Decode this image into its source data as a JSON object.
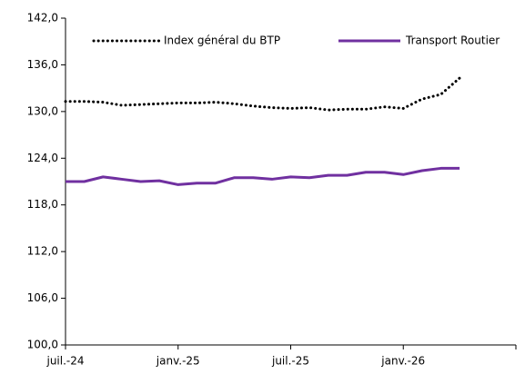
{
  "chart_data": {
    "type": "line",
    "categories": [
      "juil.-24",
      null,
      null,
      null,
      null,
      null,
      "janv.-25",
      null,
      null,
      null,
      null,
      null,
      "juil.-25",
      null,
      null,
      null,
      null,
      null,
      "janv.-26",
      null,
      null,
      null,
      null,
      null,
      null
    ],
    "series": [
      {
        "name": "Index général du BTP",
        "color": "#000000",
        "style": "dotted",
        "values": [
          131.3,
          131.3,
          131.2,
          130.8,
          130.9,
          131.0,
          131.1,
          131.1,
          131.2,
          131.0,
          130.7,
          130.5,
          130.4,
          130.5,
          130.2,
          130.3,
          130.3,
          130.6,
          130.4,
          131.6,
          132.2,
          134.3,
          null,
          null,
          null
        ]
      },
      {
        "name": "Transport Routier",
        "color": "#7030a0",
        "style": "solid",
        "values": [
          121.0,
          121.0,
          121.6,
          121.3,
          121.0,
          121.1,
          120.6,
          120.8,
          120.8,
          121.5,
          121.5,
          121.3,
          121.6,
          121.5,
          121.8,
          121.8,
          122.2,
          122.2,
          121.9,
          122.4,
          122.7,
          122.7,
          null,
          null,
          null
        ]
      }
    ],
    "ylim": [
      100,
      142
    ],
    "yticks": [
      {
        "value": 100,
        "label": "100,0"
      },
      {
        "value": 106,
        "label": "106,0"
      },
      {
        "value": 112,
        "label": "112,0"
      },
      {
        "value": 118,
        "label": "118,0"
      },
      {
        "value": 124,
        "label": "124,0"
      },
      {
        "value": 130,
        "label": "130,0"
      },
      {
        "value": 136,
        "label": "136,0"
      },
      {
        "value": 142,
        "label": "142,0"
      }
    ],
    "legend": "top"
  }
}
